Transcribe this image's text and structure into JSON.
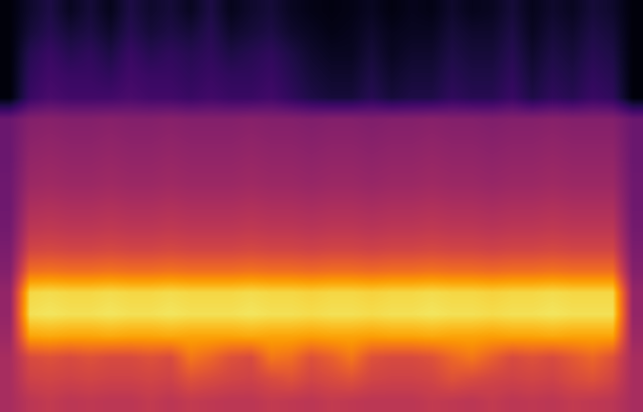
{
  "chart_data": {
    "type": "heatmap",
    "tick_labels": false,
    "color_range": [
      0,
      1
    ],
    "cells": [
      [
        0.02,
        0.08,
        0.12,
        0.06,
        0.1,
        0.05,
        0.12,
        0.08,
        0.1,
        0.06,
        0.12,
        0.05,
        0.08,
        0.1,
        0.06,
        0.04,
        0.03,
        0.04,
        0.06,
        0.03,
        0.05,
        0.04,
        0.08,
        0.05,
        0.06,
        0.1,
        0.05,
        0.08,
        0.06,
        0.1,
        0.08,
        0.02
      ],
      [
        0.02,
        0.1,
        0.14,
        0.1,
        0.12,
        0.08,
        0.14,
        0.1,
        0.12,
        0.1,
        0.14,
        0.08,
        0.1,
        0.12,
        0.08,
        0.06,
        0.04,
        0.05,
        0.08,
        0.05,
        0.06,
        0.06,
        0.1,
        0.08,
        0.08,
        0.12,
        0.06,
        0.1,
        0.08,
        0.12,
        0.1,
        0.02
      ],
      [
        0.02,
        0.14,
        0.18,
        0.14,
        0.16,
        0.12,
        0.18,
        0.14,
        0.16,
        0.14,
        0.16,
        0.12,
        0.14,
        0.16,
        0.12,
        0.08,
        0.06,
        0.06,
        0.1,
        0.06,
        0.08,
        0.08,
        0.12,
        0.1,
        0.1,
        0.14,
        0.08,
        0.12,
        0.1,
        0.14,
        0.12,
        0.02
      ],
      [
        0.02,
        0.16,
        0.2,
        0.18,
        0.18,
        0.16,
        0.2,
        0.18,
        0.18,
        0.16,
        0.18,
        0.16,
        0.16,
        0.18,
        0.14,
        0.1,
        0.08,
        0.08,
        0.12,
        0.08,
        0.1,
        0.1,
        0.14,
        0.12,
        0.12,
        0.16,
        0.1,
        0.14,
        0.12,
        0.16,
        0.14,
        0.02
      ],
      [
        0.02,
        0.18,
        0.22,
        0.2,
        0.2,
        0.2,
        0.22,
        0.2,
        0.2,
        0.18,
        0.2,
        0.18,
        0.18,
        0.2,
        0.16,
        0.12,
        0.1,
        0.1,
        0.14,
        0.1,
        0.12,
        0.12,
        0.16,
        0.14,
        0.14,
        0.18,
        0.12,
        0.16,
        0.14,
        0.18,
        0.16,
        0.02
      ],
      [
        0.3,
        0.36,
        0.37,
        0.36,
        0.36,
        0.37,
        0.36,
        0.36,
        0.37,
        0.36,
        0.36,
        0.36,
        0.37,
        0.36,
        0.36,
        0.35,
        0.36,
        0.36,
        0.35,
        0.36,
        0.36,
        0.37,
        0.36,
        0.36,
        0.35,
        0.36,
        0.36,
        0.37,
        0.36,
        0.36,
        0.36,
        0.3
      ],
      [
        0.3,
        0.38,
        0.39,
        0.38,
        0.38,
        0.39,
        0.38,
        0.38,
        0.39,
        0.38,
        0.38,
        0.38,
        0.39,
        0.38,
        0.38,
        0.37,
        0.38,
        0.38,
        0.37,
        0.38,
        0.38,
        0.39,
        0.38,
        0.38,
        0.37,
        0.38,
        0.38,
        0.39,
        0.38,
        0.38,
        0.38,
        0.3
      ],
      [
        0.3,
        0.4,
        0.41,
        0.4,
        0.4,
        0.41,
        0.4,
        0.4,
        0.41,
        0.4,
        0.4,
        0.4,
        0.41,
        0.4,
        0.4,
        0.39,
        0.4,
        0.4,
        0.39,
        0.4,
        0.4,
        0.41,
        0.4,
        0.4,
        0.39,
        0.4,
        0.4,
        0.41,
        0.4,
        0.4,
        0.4,
        0.3
      ],
      [
        0.31,
        0.42,
        0.43,
        0.42,
        0.42,
        0.43,
        0.42,
        0.42,
        0.43,
        0.42,
        0.42,
        0.42,
        0.43,
        0.42,
        0.42,
        0.41,
        0.42,
        0.42,
        0.41,
        0.42,
        0.42,
        0.43,
        0.42,
        0.42,
        0.41,
        0.42,
        0.42,
        0.43,
        0.42,
        0.42,
        0.42,
        0.31
      ],
      [
        0.31,
        0.46,
        0.47,
        0.46,
        0.46,
        0.47,
        0.46,
        0.46,
        0.47,
        0.46,
        0.46,
        0.46,
        0.47,
        0.46,
        0.46,
        0.45,
        0.46,
        0.46,
        0.45,
        0.46,
        0.46,
        0.47,
        0.46,
        0.46,
        0.45,
        0.46,
        0.46,
        0.47,
        0.46,
        0.46,
        0.46,
        0.31
      ],
      [
        0.32,
        0.5,
        0.51,
        0.5,
        0.5,
        0.51,
        0.5,
        0.5,
        0.51,
        0.5,
        0.5,
        0.5,
        0.51,
        0.5,
        0.5,
        0.49,
        0.5,
        0.5,
        0.49,
        0.5,
        0.5,
        0.51,
        0.5,
        0.5,
        0.49,
        0.5,
        0.5,
        0.51,
        0.5,
        0.5,
        0.5,
        0.32
      ],
      [
        0.34,
        0.56,
        0.57,
        0.56,
        0.56,
        0.57,
        0.56,
        0.56,
        0.57,
        0.56,
        0.56,
        0.56,
        0.57,
        0.56,
        0.56,
        0.55,
        0.56,
        0.56,
        0.55,
        0.56,
        0.56,
        0.57,
        0.56,
        0.56,
        0.55,
        0.56,
        0.56,
        0.57,
        0.56,
        0.56,
        0.56,
        0.34
      ],
      [
        0.36,
        0.68,
        0.69,
        0.68,
        0.68,
        0.69,
        0.68,
        0.68,
        0.69,
        0.68,
        0.68,
        0.68,
        0.69,
        0.68,
        0.68,
        0.67,
        0.68,
        0.68,
        0.67,
        0.68,
        0.68,
        0.69,
        0.68,
        0.68,
        0.67,
        0.68,
        0.68,
        0.69,
        0.68,
        0.68,
        0.68,
        0.36
      ],
      [
        0.4,
        0.9,
        0.91,
        0.9,
        0.9,
        0.91,
        0.9,
        0.9,
        0.91,
        0.9,
        0.9,
        0.9,
        0.91,
        0.9,
        0.9,
        0.89,
        0.9,
        0.9,
        0.89,
        0.9,
        0.9,
        0.91,
        0.9,
        0.9,
        0.89,
        0.9,
        0.9,
        0.91,
        0.9,
        0.9,
        0.9,
        0.4
      ],
      [
        0.4,
        0.92,
        0.93,
        0.92,
        0.92,
        0.93,
        0.92,
        0.92,
        0.93,
        0.92,
        0.92,
        0.92,
        0.93,
        0.92,
        0.92,
        0.91,
        0.92,
        0.92,
        0.91,
        0.92,
        0.92,
        0.93,
        0.92,
        0.92,
        0.91,
        0.92,
        0.92,
        0.93,
        0.92,
        0.92,
        0.92,
        0.4
      ],
      [
        0.42,
        0.8,
        0.81,
        0.8,
        0.8,
        0.81,
        0.8,
        0.8,
        0.81,
        0.8,
        0.8,
        0.8,
        0.81,
        0.8,
        0.8,
        0.79,
        0.8,
        0.8,
        0.79,
        0.8,
        0.8,
        0.81,
        0.8,
        0.8,
        0.79,
        0.8,
        0.8,
        0.81,
        0.8,
        0.8,
        0.8,
        0.42
      ],
      [
        0.45,
        0.58,
        0.6,
        0.58,
        0.6,
        0.58,
        0.58,
        0.6,
        0.58,
        0.7,
        0.66,
        0.6,
        0.58,
        0.7,
        0.68,
        0.6,
        0.64,
        0.7,
        0.6,
        0.58,
        0.58,
        0.6,
        0.66,
        0.7,
        0.64,
        0.58,
        0.6,
        0.58,
        0.62,
        0.66,
        0.6,
        0.45
      ],
      [
        0.45,
        0.55,
        0.56,
        0.55,
        0.56,
        0.55,
        0.55,
        0.56,
        0.55,
        0.6,
        0.58,
        0.56,
        0.55,
        0.58,
        0.6,
        0.56,
        0.58,
        0.6,
        0.56,
        0.55,
        0.55,
        0.56,
        0.6,
        0.58,
        0.56,
        0.55,
        0.56,
        0.55,
        0.58,
        0.6,
        0.56,
        0.45
      ],
      [
        0.45,
        0.5,
        0.52,
        0.5,
        0.51,
        0.5,
        0.5,
        0.52,
        0.5,
        0.52,
        0.51,
        0.5,
        0.5,
        0.52,
        0.51,
        0.5,
        0.52,
        0.51,
        0.5,
        0.5,
        0.5,
        0.52,
        0.51,
        0.5,
        0.52,
        0.5,
        0.51,
        0.5,
        0.52,
        0.51,
        0.5,
        0.45
      ]
    ]
  }
}
